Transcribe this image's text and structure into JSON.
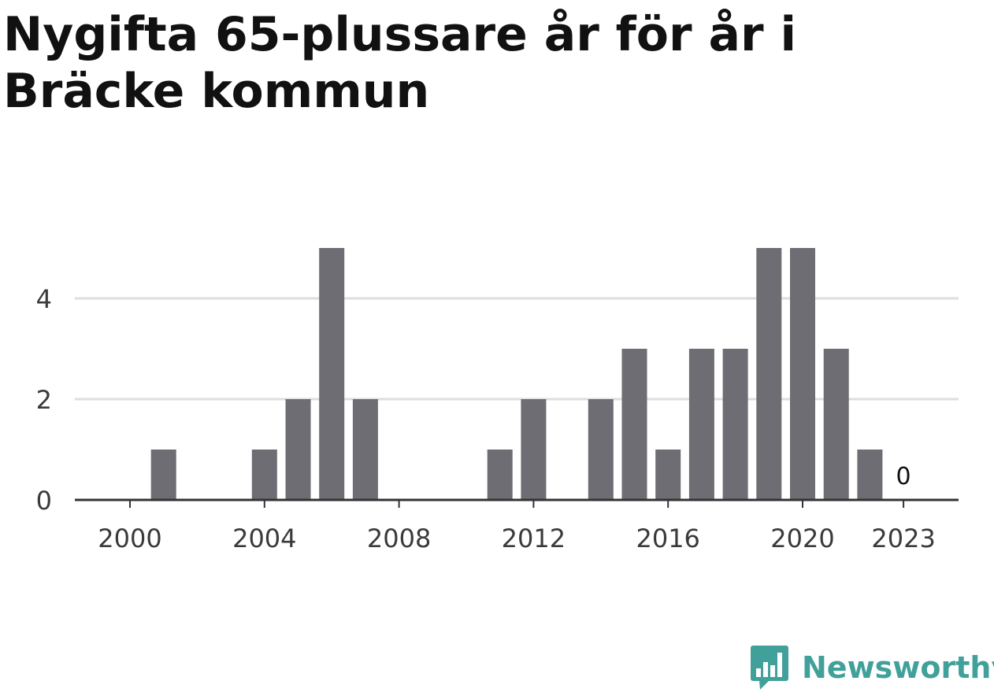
{
  "title": "Nygifta 65-plussare år för år i Bräcke kommun",
  "brand": {
    "name": "Newsworthy",
    "icon": "newsworthy-bar-chart-speech-bubble-icon",
    "color": "#41a19a"
  },
  "chart_data": {
    "type": "bar",
    "title": "Nygifta 65-plussare år för år i Bräcke kommun",
    "xlabel": "",
    "ylabel": "",
    "x": [
      2000,
      2001,
      2002,
      2003,
      2004,
      2005,
      2006,
      2007,
      2008,
      2009,
      2010,
      2011,
      2012,
      2013,
      2014,
      2015,
      2016,
      2017,
      2018,
      2019,
      2020,
      2021,
      2022,
      2023
    ],
    "values": [
      0,
      1,
      0,
      0,
      1,
      2,
      5,
      2,
      0,
      0,
      0,
      1,
      2,
      0,
      2,
      3,
      1,
      3,
      3,
      5,
      5,
      3,
      1,
      0
    ],
    "x_ticks": [
      "2000",
      "2004",
      "2008",
      "2012",
      "2016",
      "2020",
      "2023"
    ],
    "y_ticks": [
      "0",
      "2",
      "4"
    ],
    "ylim": [
      0,
      5
    ],
    "grid": true,
    "bar_color": "#6e6d73",
    "annotations": [
      {
        "x": 2023,
        "text": "0"
      }
    ]
  }
}
